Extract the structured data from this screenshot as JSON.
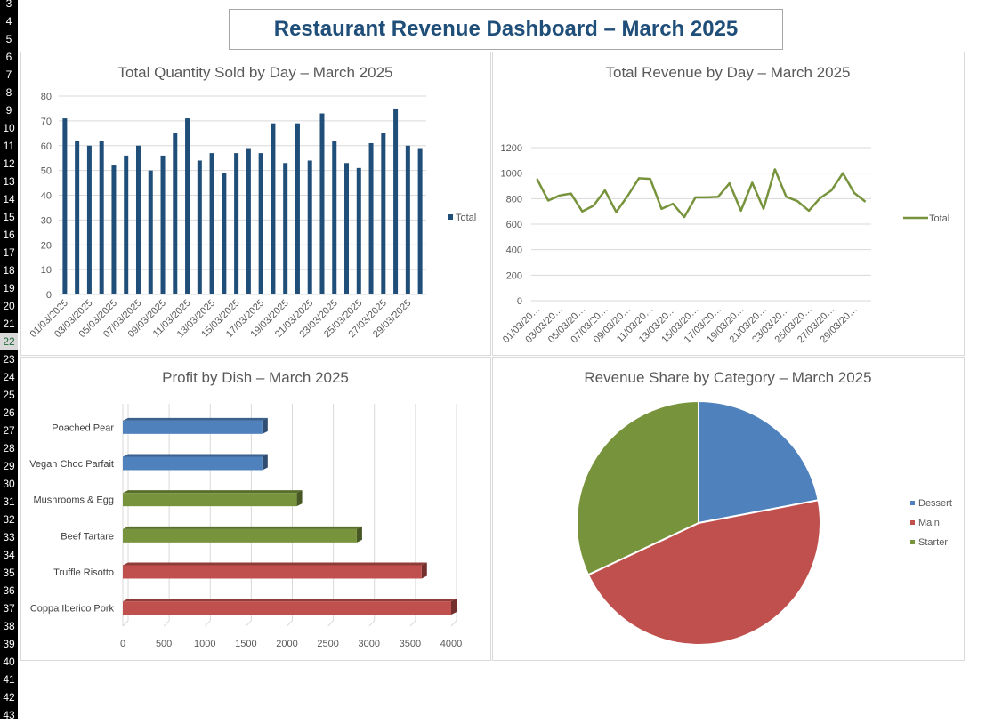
{
  "row_numbers": [
    "3",
    "4",
    "5",
    "6",
    "7",
    "8",
    "9",
    "10",
    "11",
    "12",
    "13",
    "14",
    "15",
    "16",
    "17",
    "18",
    "19",
    "20",
    "21",
    "22",
    "23",
    "24",
    "25",
    "26",
    "27",
    "28",
    "29",
    "30",
    "31",
    "32",
    "33",
    "34",
    "35",
    "36",
    "37",
    "38",
    "39",
    "40",
    "41",
    "42",
    "43"
  ],
  "selected_row": "22",
  "dashboard": {
    "title": "Restaurant Revenue Dashboard – March 2025"
  },
  "chart_data": [
    {
      "type": "bar",
      "title": "Total Quantity Sold by Day – March 2025",
      "categories": [
        "01/03/2025",
        "02/03/2025",
        "03/03/2025",
        "04/03/2025",
        "05/03/2025",
        "06/03/2025",
        "07/03/2025",
        "08/03/2025",
        "09/03/2025",
        "10/03/2025",
        "11/03/2025",
        "12/03/2025",
        "13/03/2025",
        "14/03/2025",
        "15/03/2025",
        "16/03/2025",
        "17/03/2025",
        "18/03/2025",
        "19/03/2025",
        "20/03/2025",
        "21/03/2025",
        "22/03/2025",
        "23/03/2025",
        "24/03/2025",
        "25/03/2025",
        "26/03/2025",
        "27/03/2025",
        "28/03/2025",
        "29/03/2025",
        "30/03/2025"
      ],
      "tick_labels": [
        "01/03/2025",
        "03/03/2025",
        "05/03/2025",
        "07/03/2025",
        "09/03/2025",
        "11/03/2025",
        "13/03/2025",
        "15/03/2025",
        "17/03/2025",
        "19/03/2025",
        "21/03/2025",
        "23/03/2025",
        "25/03/2025",
        "27/03/2025",
        "29/03/2025"
      ],
      "series": [
        {
          "name": "Total",
          "color": "#1f4e79",
          "values": [
            71,
            62,
            60,
            62,
            52,
            56,
            60,
            50,
            56,
            65,
            71,
            54,
            57,
            49,
            57,
            59,
            57,
            69,
            53,
            69,
            54,
            73,
            62,
            53,
            51,
            61,
            65,
            75,
            60,
            59
          ]
        }
      ],
      "ylim": [
        0,
        80
      ],
      "yticks": [
        "0",
        "10",
        "20",
        "30",
        "40",
        "50",
        "60",
        "70",
        "80"
      ],
      "legend": "right",
      "grid": true
    },
    {
      "type": "line",
      "title": "Total Revenue by Day – March 2025",
      "tick_labels": [
        "01/03/20…",
        "03/03/20…",
        "05/03/20…",
        "07/03/20…",
        "09/03/20…",
        "11/03/20…",
        "13/03/20…",
        "15/03/20…",
        "17/03/20…",
        "19/03/20…",
        "21/03/20…",
        "23/03/20…",
        "25/03/20…",
        "27/03/20…",
        "29/03/20…"
      ],
      "series": [
        {
          "name": "Total",
          "color": "#77933c",
          "values": [
            955,
            785,
            825,
            840,
            700,
            745,
            865,
            695,
            820,
            960,
            955,
            720,
            760,
            655,
            810,
            810,
            815,
            920,
            705,
            925,
            720,
            1030,
            815,
            780,
            705,
            805,
            865,
            1000,
            845,
            775
          ]
        }
      ],
      "ylim": [
        0,
        1200
      ],
      "yticks": [
        "0",
        "200",
        "400",
        "600",
        "800",
        "1000",
        "1200"
      ],
      "legend": "right",
      "grid": true
    },
    {
      "type": "bar",
      "orientation": "horizontal",
      "title": "Profit by Dish – March 2025",
      "categories": [
        "Poached Pear",
        "Vegan Choc Parfait",
        "Mushrooms & Egg",
        "Beef Tartare",
        "Truffle Risotto",
        "Coppa Iberico Pork"
      ],
      "values": [
        1700,
        1700,
        2120,
        2850,
        3640,
        4000
      ],
      "colors": [
        "#4f81bd",
        "#4f81bd",
        "#77933c",
        "#77933c",
        "#c0504d",
        "#c0504d"
      ],
      "xlim": [
        0,
        4000
      ],
      "xticks": [
        "0",
        "500",
        "1000",
        "1500",
        "2000",
        "2500",
        "3000",
        "3500",
        "4000"
      ],
      "grid": true
    },
    {
      "type": "pie",
      "title": "Revenue Share by Category – March 2025",
      "slices": [
        {
          "label": "Dessert",
          "value": 22,
          "color": "#4f81bd"
        },
        {
          "label": "Main",
          "value": 46,
          "color": "#c0504d"
        },
        {
          "label": "Starter",
          "value": 32,
          "color": "#77933c"
        }
      ],
      "legend": "right"
    }
  ]
}
